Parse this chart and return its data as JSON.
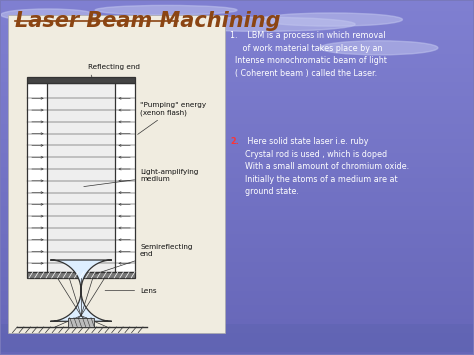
{
  "title": "Laser Beam Machining",
  "title_color": "#8B4513",
  "title_fontsize": 15,
  "text1": "1.    LBM is a process in which removal\n     of work material takes place by an\n  Intense monochromatic beam of light\n  ( Coherent beam ) called the Laser.",
  "text2_number": "2.",
  "text2_body": " Here solid state laser i.e. ruby\nCrystal rod is used , which is doped\nWith a small amount of chromium oxide.\nInitially the atoms of a medium are at\nground state.",
  "label_reflecting": "Reflecting end",
  "label_pumping": "\"Pumping\" energy\n(xenon flash)",
  "label_light": "Light-amplifying\nmedium",
  "label_semi": "Semireflecting\nend",
  "label_lens": "Lens",
  "diagram_line_color": "#333333",
  "text_color": "#ffffff",
  "number2_color": "#ff3333",
  "diagram_bg": "#f0ece0"
}
